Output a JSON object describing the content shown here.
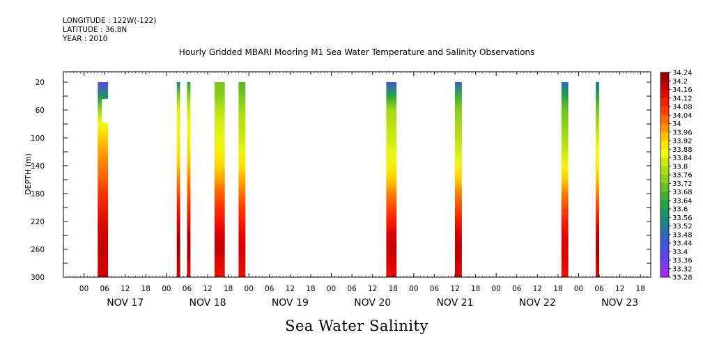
{
  "header": {
    "longitude": "LONGITUDE : 122W(-122)",
    "latitude": "LATITUDE : 36.8N",
    "year": "YEAR : 2010",
    "title": "Hourly Gridded MBARI Mooring M1 Sea Water Temperature and Salinity Observations"
  },
  "footer": {
    "variable": "Sea Water Salinity"
  },
  "chart_data": {
    "type": "heatmap",
    "title": "Hourly Gridded MBARI Mooring M1 Sea Water Temperature and Salinity Observations",
    "ylabel": "DEPTH (m)",
    "xlabel": "",
    "x_range_hours": [
      -6,
      165
    ],
    "y_range": [
      300,
      5
    ],
    "y_ticks": [
      20,
      60,
      100,
      140,
      180,
      220,
      260,
      300
    ],
    "x_hour_labels": [
      "00",
      "06",
      "12",
      "18",
      "00",
      "06",
      "12",
      "18",
      "00",
      "06",
      "12",
      "18",
      "00",
      "06",
      "12",
      "18",
      "00",
      "06",
      "12",
      "18",
      "00",
      "06",
      "12",
      "18",
      "00",
      "06",
      "12",
      "18"
    ],
    "day_labels": [
      "NOV 17",
      "NOV 18",
      "NOV 19",
      "NOV 20",
      "NOV 21",
      "NOV 22",
      "NOV 23"
    ],
    "colorbar": {
      "min": 33.28,
      "max": 34.24,
      "step": 0.04,
      "labels": [
        "34.24",
        "34.2",
        "34.16",
        "34.12",
        "34.08",
        "34.04",
        "34",
        "33.96",
        "33.92",
        "33.88",
        "33.84",
        "33.8",
        "33.76",
        "33.72",
        "33.68",
        "33.64",
        "33.6",
        "33.56",
        "33.52",
        "33.48",
        "33.44",
        "33.4",
        "33.36",
        "33.32",
        "33.28"
      ]
    },
    "profile_depths": [
      20,
      40,
      60,
      80,
      100,
      120,
      140,
      160,
      180,
      200,
      220,
      240,
      260,
      280,
      300
    ],
    "bands": [
      {
        "start_hour": 4,
        "end_hour": 7,
        "values": [
          33.38,
          33.58,
          33.76,
          33.86,
          33.93,
          33.97,
          34.0,
          34.03,
          34.07,
          34.11,
          34.14,
          34.17,
          34.18,
          34.17,
          34.16
        ],
        "gaps": [
          [
            44,
            78
          ]
        ]
      },
      {
        "start_hour": 27,
        "end_hour": 28,
        "values": [
          33.52,
          33.74,
          33.84,
          33.87,
          33.88,
          33.9,
          33.94,
          34.0,
          34.05,
          34.11,
          34.15,
          34.21,
          34.23,
          34.19,
          34.17
        ]
      },
      {
        "start_hour": 30,
        "end_hour": 31,
        "values": [
          33.64,
          33.74,
          33.82,
          33.86,
          33.88,
          33.91,
          33.95,
          34.0,
          34.04,
          34.08,
          34.13,
          34.2,
          34.22,
          34.18,
          34.15
        ]
      },
      {
        "start_hour": 38,
        "end_hour": 41,
        "values": [
          33.72,
          33.74,
          33.8,
          33.83,
          33.85,
          33.88,
          33.92,
          33.97,
          34.03,
          34.07,
          34.11,
          34.16,
          34.18,
          34.14,
          34.12
        ]
      },
      {
        "start_hour": 45,
        "end_hour": 47,
        "values": [
          33.68,
          33.72,
          33.77,
          33.8,
          33.82,
          33.85,
          33.9,
          33.96,
          34.01,
          34.06,
          34.1,
          34.14,
          34.16,
          34.14,
          34.13
        ]
      },
      {
        "start_hour": 88,
        "end_hour": 91,
        "values": [
          33.44,
          33.64,
          33.77,
          33.8,
          33.82,
          33.85,
          33.88,
          33.93,
          34.0,
          34.05,
          34.1,
          34.16,
          34.18,
          34.15,
          34.13
        ]
      },
      {
        "start_hour": 108,
        "end_hour": 110,
        "values": [
          33.46,
          33.66,
          33.74,
          33.77,
          33.8,
          33.83,
          33.87,
          33.93,
          34.0,
          34.05,
          34.11,
          34.17,
          34.2,
          34.17,
          34.15
        ]
      },
      {
        "start_hour": 139,
        "end_hour": 141,
        "values": [
          33.48,
          33.62,
          33.71,
          33.74,
          33.78,
          33.82,
          33.87,
          33.93,
          34.0,
          34.05,
          34.1,
          34.14,
          34.15,
          34.14,
          34.12
        ]
      },
      {
        "start_hour": 149,
        "end_hour": 150,
        "values": [
          33.52,
          33.62,
          33.72,
          33.78,
          33.83,
          33.86,
          33.89,
          33.94,
          34.0,
          34.06,
          34.12,
          34.19,
          34.22,
          34.18,
          34.15
        ]
      }
    ]
  }
}
